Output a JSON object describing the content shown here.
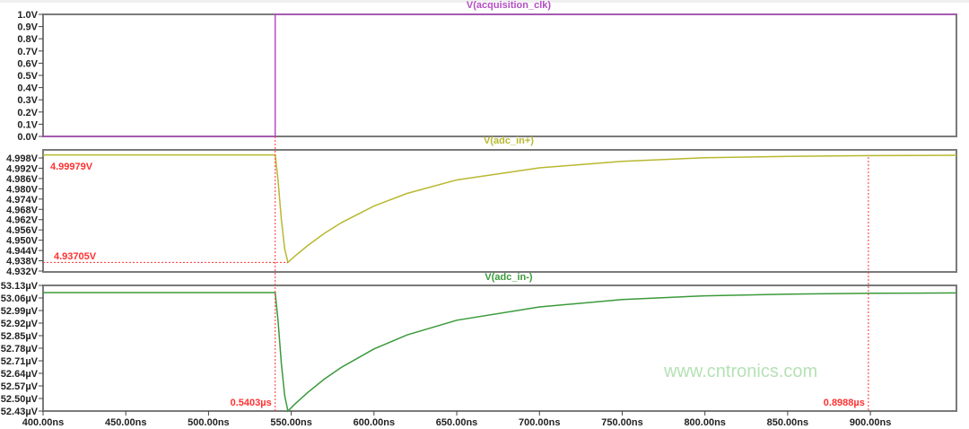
{
  "chart_data": [
    {
      "type": "line",
      "title": "V(acquisition_clk)",
      "color": "#b44ec4",
      "ylim": [
        0,
        1.0
      ],
      "yticks": [
        "1.0V",
        "0.9V",
        "0.8V",
        "0.7V",
        "0.6V",
        "0.5V",
        "0.4V",
        "0.3V",
        "0.2V",
        "0.1V",
        "0.0V"
      ],
      "x": [
        400,
        540.3,
        540.3,
        952
      ],
      "y": [
        0,
        0,
        1,
        1
      ]
    },
    {
      "type": "line",
      "title": "V(adc_in+)",
      "color": "#b8b830",
      "ylim": [
        4.932,
        5.0025
      ],
      "yticks": [
        "4.998V",
        "4.992V",
        "4.986V",
        "4.980V",
        "4.974V",
        "4.968V",
        "4.962V",
        "4.956V",
        "4.950V",
        "4.944V",
        "4.938V",
        "4.932V"
      ],
      "x": [
        400,
        540.3,
        542,
        544,
        546,
        548,
        552,
        560,
        570,
        580,
        600,
        620,
        650,
        700,
        750,
        800,
        850,
        900,
        952
      ],
      "y": [
        4.99979,
        4.99979,
        4.985,
        4.962,
        4.945,
        4.93705,
        4.94054,
        4.94694,
        4.95398,
        4.96008,
        4.96993,
        4.97733,
        4.98517,
        4.99223,
        4.99608,
        4.99808,
        4.99895,
        4.99938,
        4.99959
      ],
      "annotations": [
        "4.99979V",
        "4.93705V"
      ]
    },
    {
      "type": "line",
      "title": "V(adc_in-)",
      "color": "#3a9a3a",
      "ylim": [
        52.43,
        53.13
      ],
      "yticks": [
        "53.13µV",
        "53.06µV",
        "52.99µV",
        "52.92µV",
        "52.85µV",
        "52.78µV",
        "52.71µV",
        "52.64µV",
        "52.57µV",
        "52.50µV",
        "52.43µV"
      ],
      "x": [
        400,
        540.3,
        542,
        544,
        546,
        548,
        552,
        560,
        570,
        580,
        600,
        620,
        650,
        700,
        750,
        800,
        850,
        900,
        952
      ],
      "y": [
        53.09,
        53.09,
        52.934,
        52.694,
        52.516,
        52.43,
        52.467,
        52.534,
        52.608,
        52.672,
        52.776,
        52.854,
        52.936,
        53.01,
        53.051,
        53.072,
        53.081,
        53.086,
        53.088
      ]
    }
  ],
  "x_axis": {
    "xlim": [
      400,
      952
    ],
    "ticks": [
      400,
      450,
      500,
      550,
      600,
      650,
      700,
      750,
      800,
      850,
      900
    ],
    "tick_labels": [
      "400.00ns",
      "450.00ns",
      "500.00ns",
      "550.00ns",
      "600.00ns",
      "650.00ns",
      "700.00ns",
      "750.00ns",
      "800.00ns",
      "850.00ns",
      "900.00ns"
    ]
  },
  "cursors": [
    {
      "x": 540.3,
      "label": "0.5403µs"
    },
    {
      "x": 898.8,
      "label": "0.8988µs"
    }
  ],
  "cursor_color": "#ff3030",
  "watermark": "www.cntronics.com"
}
